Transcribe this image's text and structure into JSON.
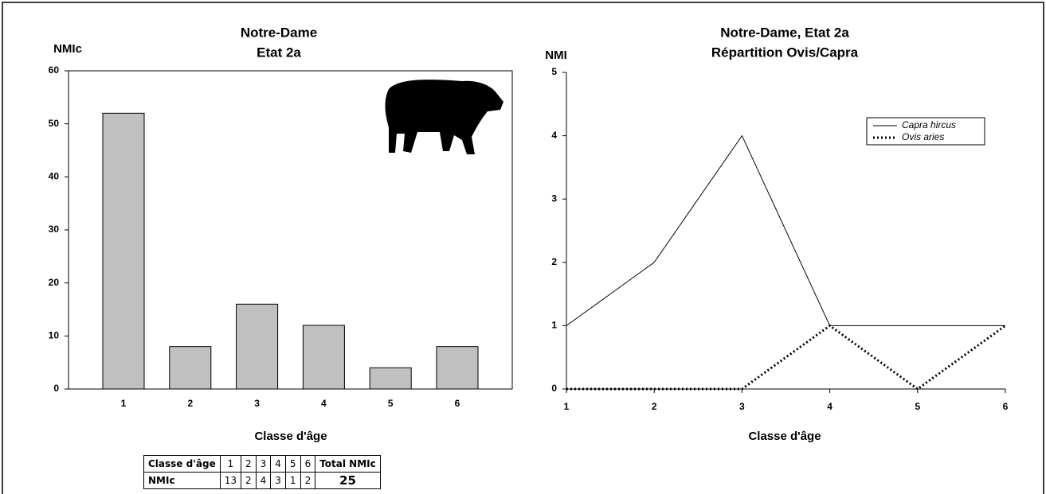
{
  "chart_data": [
    {
      "type": "bar",
      "title": "Notre-Dame",
      "subtitle": "Etat 2a",
      "y_label": "NMIc",
      "x_label": "Classe d'âge",
      "categories": [
        "1",
        "2",
        "3",
        "4",
        "5",
        "6"
      ],
      "values": [
        52,
        8,
        16,
        12,
        4,
        8
      ],
      "color": "#c0c0c0",
      "ylim": [
        0,
        60
      ],
      "yticks": [
        0,
        10,
        20,
        30,
        40,
        50,
        60
      ],
      "grid": false
    },
    {
      "type": "line",
      "title": "Notre-Dame, Etat 2a",
      "subtitle": "Répartition Ovis/Capra",
      "y_label": "NMI",
      "x_label": "Classe d'âge",
      "x": [
        1,
        2,
        3,
        4,
        5,
        6
      ],
      "xlim": [
        1,
        6
      ],
      "xticks": [
        1,
        2,
        3,
        4,
        5,
        6
      ],
      "ylim": [
        0,
        5
      ],
      "yticks": [
        0,
        1,
        2,
        3,
        4,
        5
      ],
      "grid": false,
      "legend": "upper right",
      "series": [
        {
          "name": "Capra hircus",
          "color": "#000000",
          "style": "solid",
          "values": [
            1,
            2,
            4,
            1,
            1,
            1
          ]
        },
        {
          "name": "Ovis aries",
          "color": "#000000",
          "style": "dotted",
          "values": [
            0,
            0,
            0,
            1,
            0,
            1
          ]
        }
      ]
    }
  ],
  "table": {
    "rows": [
      [
        "Classe d'âge",
        1,
        2,
        3,
        4,
        5,
        6,
        "Total NMIc"
      ],
      [
        "NMIc",
        13,
        2,
        4,
        3,
        1,
        2,
        25
      ]
    ]
  }
}
